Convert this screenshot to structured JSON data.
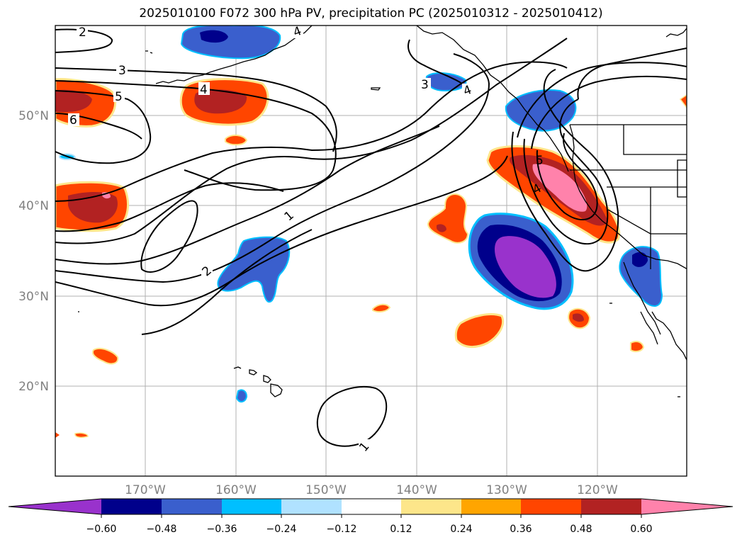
{
  "title": "2025010100 F072 300 hPa PV, precipitation PC (2025010312 - 2025010412)",
  "map": {
    "lat_labels": [
      "50°N",
      "40°N",
      "30°N",
      "20°N"
    ],
    "lon_labels": [
      "170°W",
      "160°W",
      "150°W",
      "140°W",
      "130°W",
      "120°W"
    ],
    "pv_contour_labels": [
      "2",
      "3",
      "4",
      "5",
      "6",
      "1",
      "2",
      "3",
      "4",
      "1",
      "5",
      "4",
      "4"
    ],
    "colors": {
      "gridline": "#b0b0b0",
      "tick_label": "#808080",
      "contour": "#000000"
    }
  },
  "colorbar": {
    "tick_labels": [
      "−0.60",
      "−0.48",
      "−0.36",
      "−0.24",
      "−0.12",
      "0.12",
      "0.24",
      "0.36",
      "0.48",
      "0.60"
    ],
    "colors": [
      "#9932cc",
      "#00008b",
      "#3a5fcd",
      "#00bfff",
      "#b0e2ff",
      "#ffffff",
      "#fde68a",
      "#ffa500",
      "#ff4500",
      "#b22222",
      "#ff82ab"
    ]
  }
}
